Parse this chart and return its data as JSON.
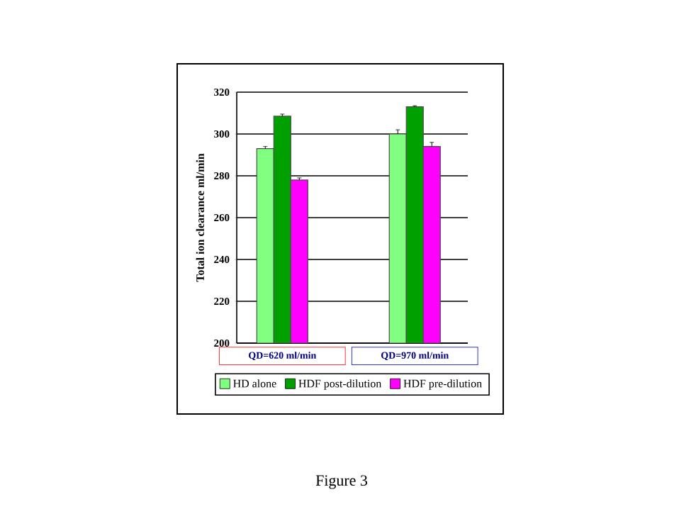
{
  "chart_data": {
    "type": "bar",
    "ylabel": "Total ion clearance ml/min",
    "categories": [
      "QD=620 ml/min",
      "QD=970 ml/min"
    ],
    "series": [
      {
        "name": "HD alone",
        "color": "#80ff80",
        "values": [
          293,
          300
        ],
        "errors": [
          1,
          2
        ]
      },
      {
        "name": "HDF post-dilution",
        "color": "#00a000",
        "values": [
          308.5,
          313
        ],
        "errors": [
          1,
          0.5
        ]
      },
      {
        "name": "HDF pre-dilution",
        "color": "#ff00ff",
        "values": [
          278,
          294
        ],
        "errors": [
          1,
          2
        ]
      }
    ],
    "ylim": [
      200,
      320
    ],
    "yticks": [
      200,
      220,
      240,
      260,
      280,
      300,
      320
    ],
    "grid": "y",
    "legend": "bottom",
    "annotations": [
      "Figure 3"
    ]
  }
}
